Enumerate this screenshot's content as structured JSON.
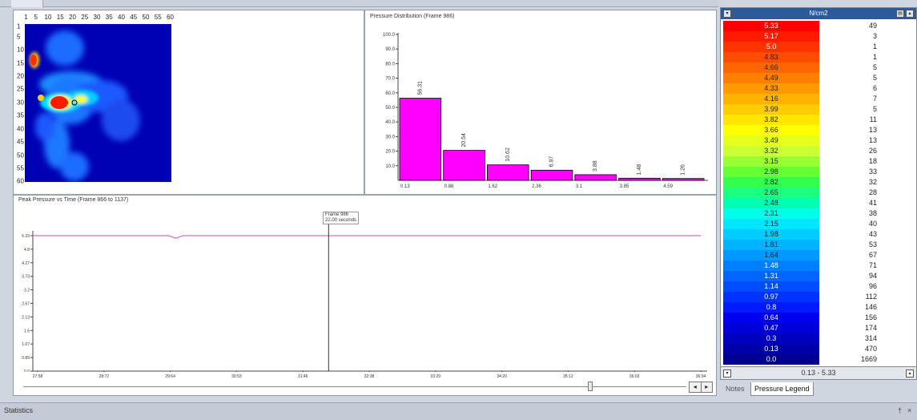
{
  "heatmap": {
    "x_ticks": [
      "1",
      "5",
      "10",
      "15",
      "20",
      "25",
      "30",
      "35",
      "40",
      "45",
      "50",
      "55",
      "60"
    ],
    "y_ticks": [
      "1",
      "5",
      "10",
      "15",
      "20",
      "25",
      "30",
      "35",
      "40",
      "45",
      "50",
      "55",
      "60"
    ]
  },
  "histogram": {
    "title": "Pressure Distribution (Frame 986)"
  },
  "time_plot": {
    "title": "Peak Pressure vs Time (Frame 866 to 1137)",
    "marker_label_line1": "Frame 986",
    "marker_label_line2": "22.00 seconds"
  },
  "chart_data": [
    {
      "type": "bar",
      "title": "Pressure Distribution (Frame 986)",
      "categories": [
        "0.13",
        "0.88",
        "1.62",
        "2.36",
        "3.1",
        "3.85",
        "4.59"
      ],
      "values": [
        56.31,
        20.54,
        10.62,
        6.97,
        3.88,
        1.48,
        1.26
      ],
      "value_labels": [
        "56.31",
        "20.54",
        "10.62",
        "6.97",
        "3.88",
        "1.48",
        "1.26"
      ],
      "y_ticks": [
        "10.0",
        "20.0",
        "30.0",
        "40.0",
        "50.0",
        "60.0",
        "70.0",
        "80.0",
        "90.0",
        "100.0"
      ],
      "ylim": [
        0,
        100
      ],
      "color": "#ff00ff"
    },
    {
      "type": "line",
      "title": "Peak Pressure vs Time (Frame 866 to 1137)",
      "x_ticks": [
        "27:58",
        "28:72",
        "29:64",
        "30:53",
        "31:46",
        "32:38",
        "33:29",
        "34:20",
        "35:12",
        "36:03",
        "36:94"
      ],
      "y_ticks": [
        "0.0",
        "0.89",
        "1.07",
        "1.6",
        "2.13",
        "2.67",
        "3.2",
        "3.73",
        "4.27",
        "4.8",
        "5.33"
      ],
      "ylim": [
        0,
        5.33
      ],
      "x_range": [
        0,
        271
      ],
      "series": [
        {
          "x": [
            0,
            55,
            58,
            61,
            271
          ],
          "y": [
            5.33,
            5.33,
            5.23,
            5.33,
            5.33
          ]
        }
      ],
      "marker_x": 120,
      "color": "#d070d0"
    }
  ],
  "legend": {
    "unit": "N/cm2",
    "range": "0.13 - 5.33",
    "rows": [
      {
        "value": "5.33",
        "count": "49",
        "color": "#ff0000",
        "text": "#ffffff"
      },
      {
        "value": "5.17",
        "count": "3",
        "color": "#ff1a00",
        "text": "#ffffff"
      },
      {
        "value": "5.0",
        "count": "1",
        "color": "#ff3300",
        "text": "#ffffff"
      },
      {
        "value": "4.83",
        "count": "1",
        "color": "#ff4d00",
        "text": "#222222"
      },
      {
        "value": "4.66",
        "count": "5",
        "color": "#ff6600",
        "text": "#222222"
      },
      {
        "value": "4.49",
        "count": "5",
        "color": "#ff8000",
        "text": "#222222"
      },
      {
        "value": "4.33",
        "count": "6",
        "color": "#ff9900",
        "text": "#222222"
      },
      {
        "value": "4.16",
        "count": "7",
        "color": "#ffb300",
        "text": "#222222"
      },
      {
        "value": "3.99",
        "count": "5",
        "color": "#ffcc00",
        "text": "#222222"
      },
      {
        "value": "3.82",
        "count": "11",
        "color": "#ffe600",
        "text": "#222222"
      },
      {
        "value": "3.66",
        "count": "13",
        "color": "#ffff00",
        "text": "#222222"
      },
      {
        "value": "3.49",
        "count": "13",
        "color": "#e6ff1a",
        "text": "#222222"
      },
      {
        "value": "3.32",
        "count": "26",
        "color": "#ccff33",
        "text": "#222222"
      },
      {
        "value": "3.15",
        "count": "18",
        "color": "#99ff33",
        "text": "#222222"
      },
      {
        "value": "2.98",
        "count": "33",
        "color": "#66ff33",
        "text": "#222222"
      },
      {
        "value": "2.82",
        "count": "32",
        "color": "#33ff4d",
        "text": "#222222"
      },
      {
        "value": "2.65",
        "count": "28",
        "color": "#1aff80",
        "text": "#222222"
      },
      {
        "value": "2.48",
        "count": "41",
        "color": "#00ffb3",
        "text": "#222222"
      },
      {
        "value": "2.31",
        "count": "38",
        "color": "#00ffe6",
        "text": "#222222"
      },
      {
        "value": "2.15",
        "count": "40",
        "color": "#00e6ff",
        "text": "#222222"
      },
      {
        "value": "1.98",
        "count": "43",
        "color": "#00ccff",
        "text": "#222222"
      },
      {
        "value": "1.81",
        "count": "53",
        "color": "#00b3ff",
        "text": "#222222"
      },
      {
        "value": "1.64",
        "count": "67",
        "color": "#0099ff",
        "text": "#222222"
      },
      {
        "value": "1.48",
        "count": "71",
        "color": "#0080ff",
        "text": "#ffffff"
      },
      {
        "value": "1.31",
        "count": "94",
        "color": "#0066ff",
        "text": "#ffffff"
      },
      {
        "value": "1.14",
        "count": "96",
        "color": "#004dff",
        "text": "#ffffff"
      },
      {
        "value": "0.97",
        "count": "112",
        "color": "#0033ff",
        "text": "#ffffff"
      },
      {
        "value": "0.8",
        "count": "146",
        "color": "#001aff",
        "text": "#ffffff"
      },
      {
        "value": "0.64",
        "count": "156",
        "color": "#0000f0",
        "text": "#ffffff"
      },
      {
        "value": "0.47",
        "count": "174",
        "color": "#0000d8",
        "text": "#ffffff"
      },
      {
        "value": "0.3",
        "count": "314",
        "color": "#0000c0",
        "text": "#ffffff"
      },
      {
        "value": "0.13",
        "count": "470",
        "color": "#0000a8",
        "text": "#ffffff"
      },
      {
        "value": "0.0",
        "count": "1669",
        "color": "#000090",
        "text": "#ffffff"
      }
    ]
  },
  "bottom_tabs": {
    "notes": "Notes",
    "pressure_legend": "Pressure Legend"
  },
  "status": {
    "label": "Statistics",
    "pin": "†",
    "close": "×"
  },
  "scroll": {
    "prev": "◂",
    "next": "▸"
  },
  "icons": {
    "dropdown": "▾",
    "collapse": "▴"
  }
}
